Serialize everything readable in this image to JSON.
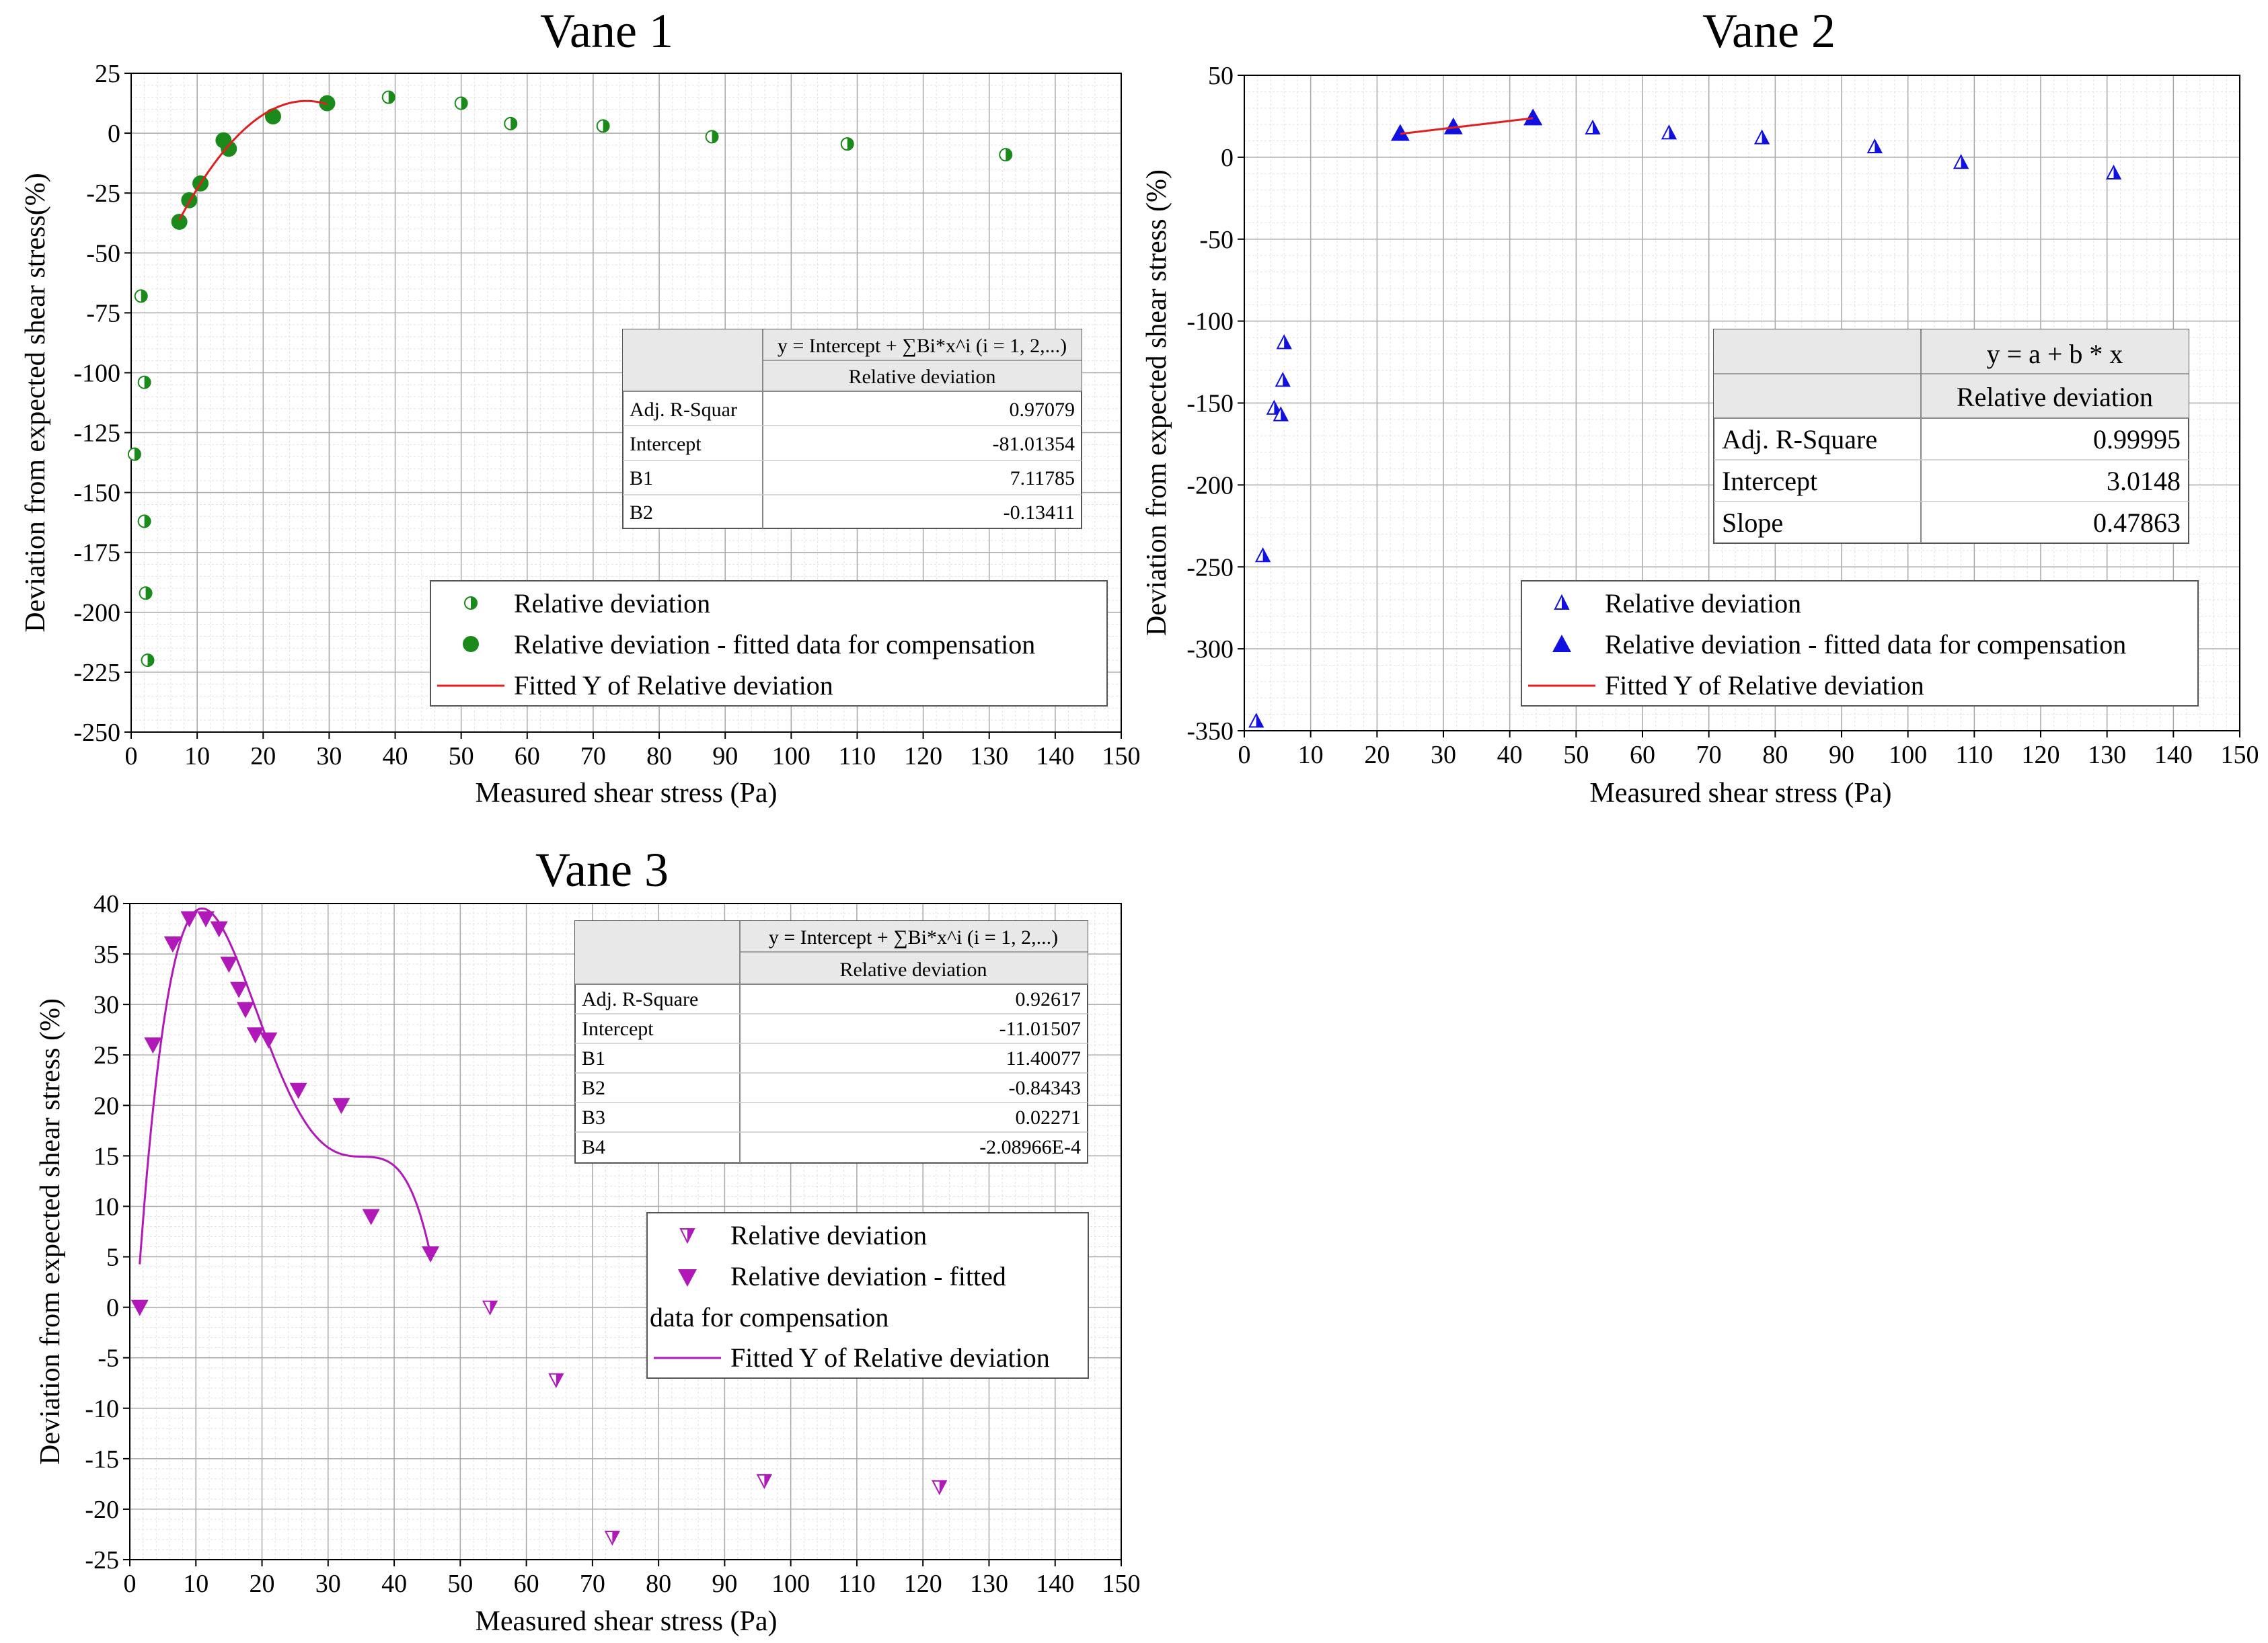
{
  "charts": {
    "vane1": {
      "title": "Vane 1",
      "xlabel": "Measured shear stress (Pa)",
      "ylabel": "Deviation from expected shear stress(%)",
      "xticks": [
        "0",
        "10",
        "20",
        "30",
        "40",
        "50",
        "60",
        "70",
        "80",
        "90",
        "100",
        "110",
        "120",
        "130",
        "140",
        "150"
      ],
      "yticks": [
        "25",
        "0",
        "-25",
        "-50",
        "-75",
        "-100",
        "-125",
        "-150",
        "-175",
        "-200",
        "-225",
        "-250"
      ],
      "table": {
        "header": "y = Intercept + ∑Bi*x^i (i = 1, 2,...)",
        "subheader": "Relative deviation",
        "rows": [
          {
            "label": "Adj. R-Squar",
            "value": "0.97079"
          },
          {
            "label": "Intercept",
            "value": "-81.01354"
          },
          {
            "label": "B1",
            "value": "7.11785"
          },
          {
            "label": "B2",
            "value": "-0.13411"
          }
        ]
      },
      "legend": {
        "l1": "Relative deviation",
        "l2": "Relative deviation - fitted data for compensation",
        "l3": "Fitted Y of Relative deviation"
      }
    },
    "vane2": {
      "title": "Vane 2",
      "xlabel": "Measured shear stress (Pa)",
      "ylabel": "Deviation from expected shear stress (%)",
      "xticks": [
        "0",
        "10",
        "20",
        "30",
        "40",
        "50",
        "60",
        "70",
        "80",
        "90",
        "100",
        "110",
        "120",
        "130",
        "140",
        "150"
      ],
      "yticks": [
        "50",
        "0",
        "-50",
        "-100",
        "-150",
        "-200",
        "-250",
        "-300",
        "-350"
      ],
      "table": {
        "header": "y = a + b * x",
        "subheader": "Relative deviation",
        "rows": [
          {
            "label": "Adj. R-Square",
            "value": "0.99995"
          },
          {
            "label": "Intercept",
            "value": "3.0148"
          },
          {
            "label": "Slope",
            "value": "0.47863"
          }
        ]
      },
      "legend": {
        "l1": "Relative deviation",
        "l2": "Relative deviation - fitted data for compensation",
        "l3": "Fitted Y of Relative deviation"
      }
    },
    "vane3": {
      "title": "Vane 3",
      "xlabel": "Measured shear stress (Pa)",
      "ylabel": "Deviation from expected shear stress (%)",
      "xticks": [
        "0",
        "10",
        "20",
        "30",
        "40",
        "50",
        "60",
        "70",
        "80",
        "90",
        "100",
        "110",
        "120",
        "130",
        "140",
        "150"
      ],
      "yticks": [
        "40",
        "35",
        "30",
        "25",
        "20",
        "15",
        "10",
        "5",
        "0",
        "-5",
        "-10",
        "-15",
        "-20",
        "-25"
      ],
      "table": {
        "header": "y = Intercept + ∑Bi*x^i (i = 1, 2,...)",
        "subheader": "Relative deviation",
        "rows": [
          {
            "label": "Adj. R-Square",
            "value": "0.92617"
          },
          {
            "label": "Intercept",
            "value": "-11.01507"
          },
          {
            "label": "B1",
            "value": "11.40077"
          },
          {
            "label": "B2",
            "value": "-0.84343"
          },
          {
            "label": "B3",
            "value": "0.02271"
          },
          {
            "label": "B4",
            "value": "-2.08966E-4"
          }
        ]
      },
      "legend": {
        "l1": "Relative deviation",
        "l2a": "Relative deviation - fitted",
        "l2b": "data for compensation",
        "l3": "Fitted Y of Relative deviation"
      }
    }
  },
  "chart_data": [
    {
      "type": "scatter",
      "title": "Vane 1",
      "xlabel": "Measured shear stress (Pa)",
      "ylabel": "Deviation from expected shear stress(%)",
      "xlim": [
        0,
        150
      ],
      "ylim": [
        -250,
        25
      ],
      "color": "#1a8a1a",
      "series": [
        {
          "name": "Relative deviation",
          "marker": "half-circle",
          "x": [
            1.5,
            2,
            2,
            2.2,
            2.5,
            39,
            50,
            57.5,
            71.5,
            88,
            108.5,
            132.5,
            0.5
          ],
          "y": [
            -68,
            -104,
            -162,
            -192,
            -220,
            15,
            12.5,
            4,
            3,
            -1.5,
            -4.5,
            -9,
            -134
          ]
        },
        {
          "name": "Relative deviation - fitted data for compensation",
          "marker": "circle",
          "x": [
            7.3,
            8.8,
            10.5,
            14,
            14.8,
            21.5,
            29.7
          ],
          "y": [
            -37,
            -28,
            -21,
            -3,
            -6.5,
            7,
            12.5
          ]
        },
        {
          "name": "Fitted Y of Relative deviation",
          "marker": "line",
          "color": "#e02020",
          "fit": {
            "type": "poly",
            "coef": [
              -81.01354,
              7.11785,
              -0.13411
            ],
            "xrange": [
              7.3,
              29.7
            ]
          }
        }
      ]
    },
    {
      "type": "scatter",
      "title": "Vane 2",
      "xlabel": "Measured shear stress (Pa)",
      "ylabel": "Deviation from expected shear stress (%)",
      "xlim": [
        0,
        150
      ],
      "ylim": [
        -350,
        50
      ],
      "color": "#1010e0",
      "series": [
        {
          "name": "Relative deviation",
          "marker": "half-triangle",
          "x": [
            1.8,
            2.8,
            4.5,
            5.5,
            5.8,
            6,
            52.5,
            64,
            78,
            95,
            108,
            131
          ],
          "y": [
            -344,
            -243,
            -153,
            -157,
            -136,
            -113,
            18,
            15,
            12,
            6.5,
            -3,
            -9.5
          ]
        },
        {
          "name": "Relative deviation - fitted data for compensation",
          "marker": "triangle",
          "x": [
            23.5,
            31.5,
            43.5
          ],
          "y": [
            14.5,
            18.5,
            24
          ]
        },
        {
          "name": "Fitted Y of Relative deviation",
          "marker": "line",
          "color": "#e02020",
          "fit": {
            "type": "poly",
            "coef": [
              3.0148,
              0.47863
            ],
            "xrange": [
              23.5,
              43.5
            ]
          }
        }
      ]
    },
    {
      "type": "scatter",
      "title": "Vane 3",
      "xlabel": "Measured shear stress (Pa)",
      "ylabel": "Deviation from expected shear stress (%)",
      "xlim": [
        0,
        150
      ],
      "ylim": [
        -25,
        40
      ],
      "color": "#b018b8",
      "series": [
        {
          "name": "Relative deviation",
          "marker": "half-triangle-down",
          "x": [
            54.5,
            64.5,
            73,
            96,
            122.5
          ],
          "y": [
            0,
            -7.2,
            -22.8,
            -17.2,
            -17.8
          ]
        },
        {
          "name": "Relative deviation - fitted data for compensation",
          "marker": "triangle-down",
          "x": [
            1.5,
            3.5,
            6.5,
            9,
            11.5,
            13.5,
            15,
            16.5,
            17.5,
            19,
            21,
            25.5,
            32,
            36.5,
            45.5
          ],
          "y": [
            0,
            26,
            36,
            38.5,
            38.5,
            37.5,
            34,
            31.5,
            29.5,
            27,
            26.5,
            21.5,
            20,
            9,
            5.3
          ]
        },
        {
          "name": "Fitted Y of Relative deviation",
          "marker": "line",
          "color": "#b018b8",
          "fit": {
            "type": "poly",
            "coef": [
              -11.01507,
              11.40077,
              -0.84343,
              0.02271,
              -0.000208966
            ],
            "xrange": [
              1.5,
              45.5
            ]
          }
        }
      ]
    }
  ]
}
